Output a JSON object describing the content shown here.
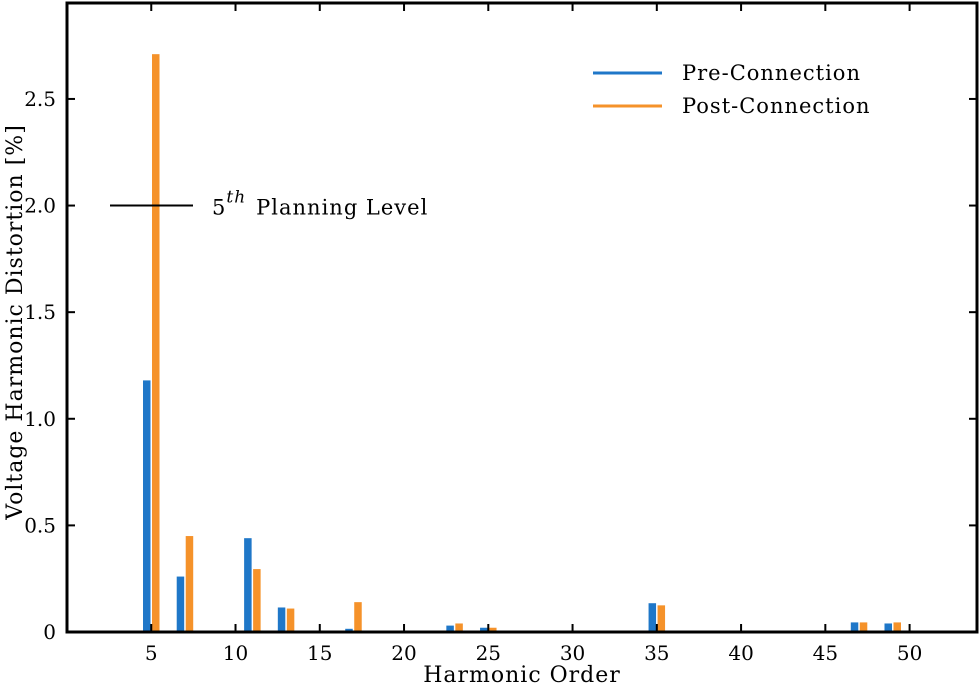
{
  "chart_data": {
    "type": "bar",
    "xlabel": "Harmonic Order",
    "ylabel": "Voltage Harmonic Distortion [%]",
    "xlim": [
      0,
      54
    ],
    "ylim": [
      0,
      2.95
    ],
    "xticks": [
      5,
      10,
      15,
      20,
      25,
      30,
      35,
      40,
      45,
      50
    ],
    "yticks": [
      0,
      0.5,
      1.0,
      1.5,
      2.0,
      2.5
    ],
    "ytick_labels": [
      "0",
      "0.5",
      "1.0",
      "1.5",
      "2.0",
      "2.5"
    ],
    "x": [
      5,
      7,
      11,
      13,
      17,
      19,
      23,
      25,
      35,
      47,
      49
    ],
    "series": [
      {
        "name": "Pre-Connection",
        "color": "#1f77c8",
        "values": [
          1.18,
          0.26,
          0.44,
          0.115,
          0.015,
          0.0,
          0.03,
          0.02,
          0.135,
          0.045,
          0.04
        ]
      },
      {
        "name": "Post-Connection",
        "color": "#f5922a",
        "values": [
          2.71,
          0.45,
          0.295,
          0.11,
          0.14,
          0.005,
          0.04,
          0.02,
          0.125,
          0.045,
          0.045
        ]
      }
    ],
    "annotation": {
      "base": "5",
      "superscript": "th",
      "text": "Planning Level",
      "value": 2.0
    },
    "legend_position": "top-right",
    "grid": false
  }
}
